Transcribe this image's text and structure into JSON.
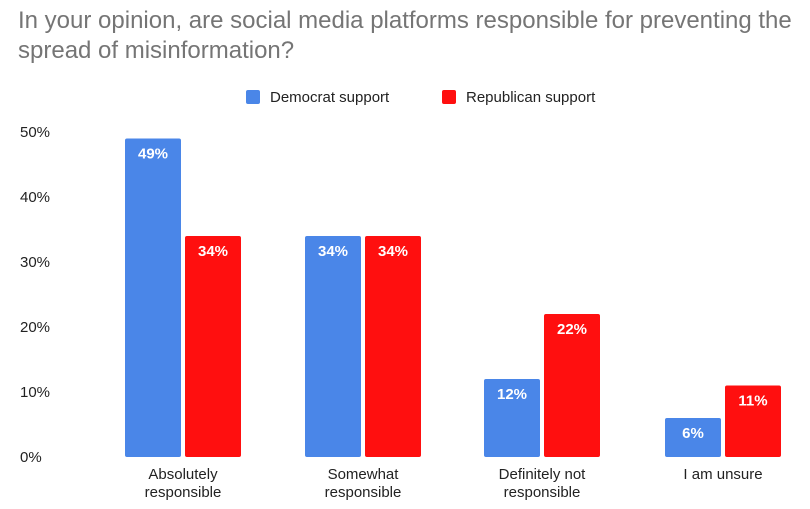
{
  "chart_data": {
    "type": "bar",
    "title": "In your opinion, are social media platforms responsible for preventing the spread of misinformation?",
    "categories": [
      [
        "Absolutely",
        "responsible"
      ],
      [
        "Somewhat",
        "responsible"
      ],
      [
        "Definitely not",
        "responsible"
      ],
      [
        "I am unsure"
      ]
    ],
    "series": [
      {
        "name": "Democrat support",
        "color": "#4a86e8",
        "values": [
          49,
          34,
          12,
          6
        ],
        "labels": [
          "49%",
          "34%",
          "12%",
          "6%"
        ]
      },
      {
        "name": "Republican support",
        "color": "#ff0f0f",
        "values": [
          34,
          34,
          22,
          11
        ],
        "labels": [
          "34%",
          "34%",
          "22%",
          "11%"
        ]
      }
    ],
    "yticks": [
      "0%",
      "10%",
      "20%",
      "30%",
      "40%",
      "50%"
    ],
    "ylim": [
      0,
      50
    ],
    "grid": false,
    "legend_position": "top"
  }
}
